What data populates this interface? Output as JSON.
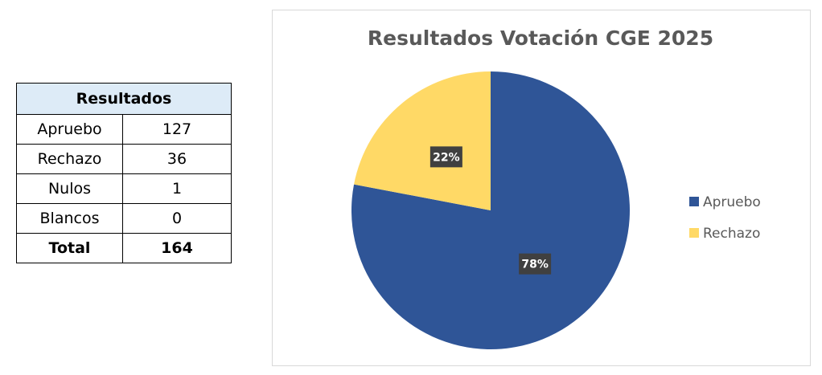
{
  "table": {
    "title": "Resultados",
    "rows": [
      [
        "Apruebo",
        127
      ],
      [
        "Rechazo",
        36
      ],
      [
        "Nulos",
        1
      ],
      [
        "Blancos",
        0
      ]
    ],
    "total": [
      "Total",
      164
    ]
  },
  "chart_data": {
    "type": "pie",
    "title": "Resultados Votación CGE 2025",
    "categories": [
      "Apruebo",
      "Rechazo"
    ],
    "values": [
      78,
      22
    ],
    "value_labels": [
      "78%",
      "22%"
    ],
    "colors": [
      "#2f5597",
      "#ffd966"
    ],
    "legend": "right"
  }
}
